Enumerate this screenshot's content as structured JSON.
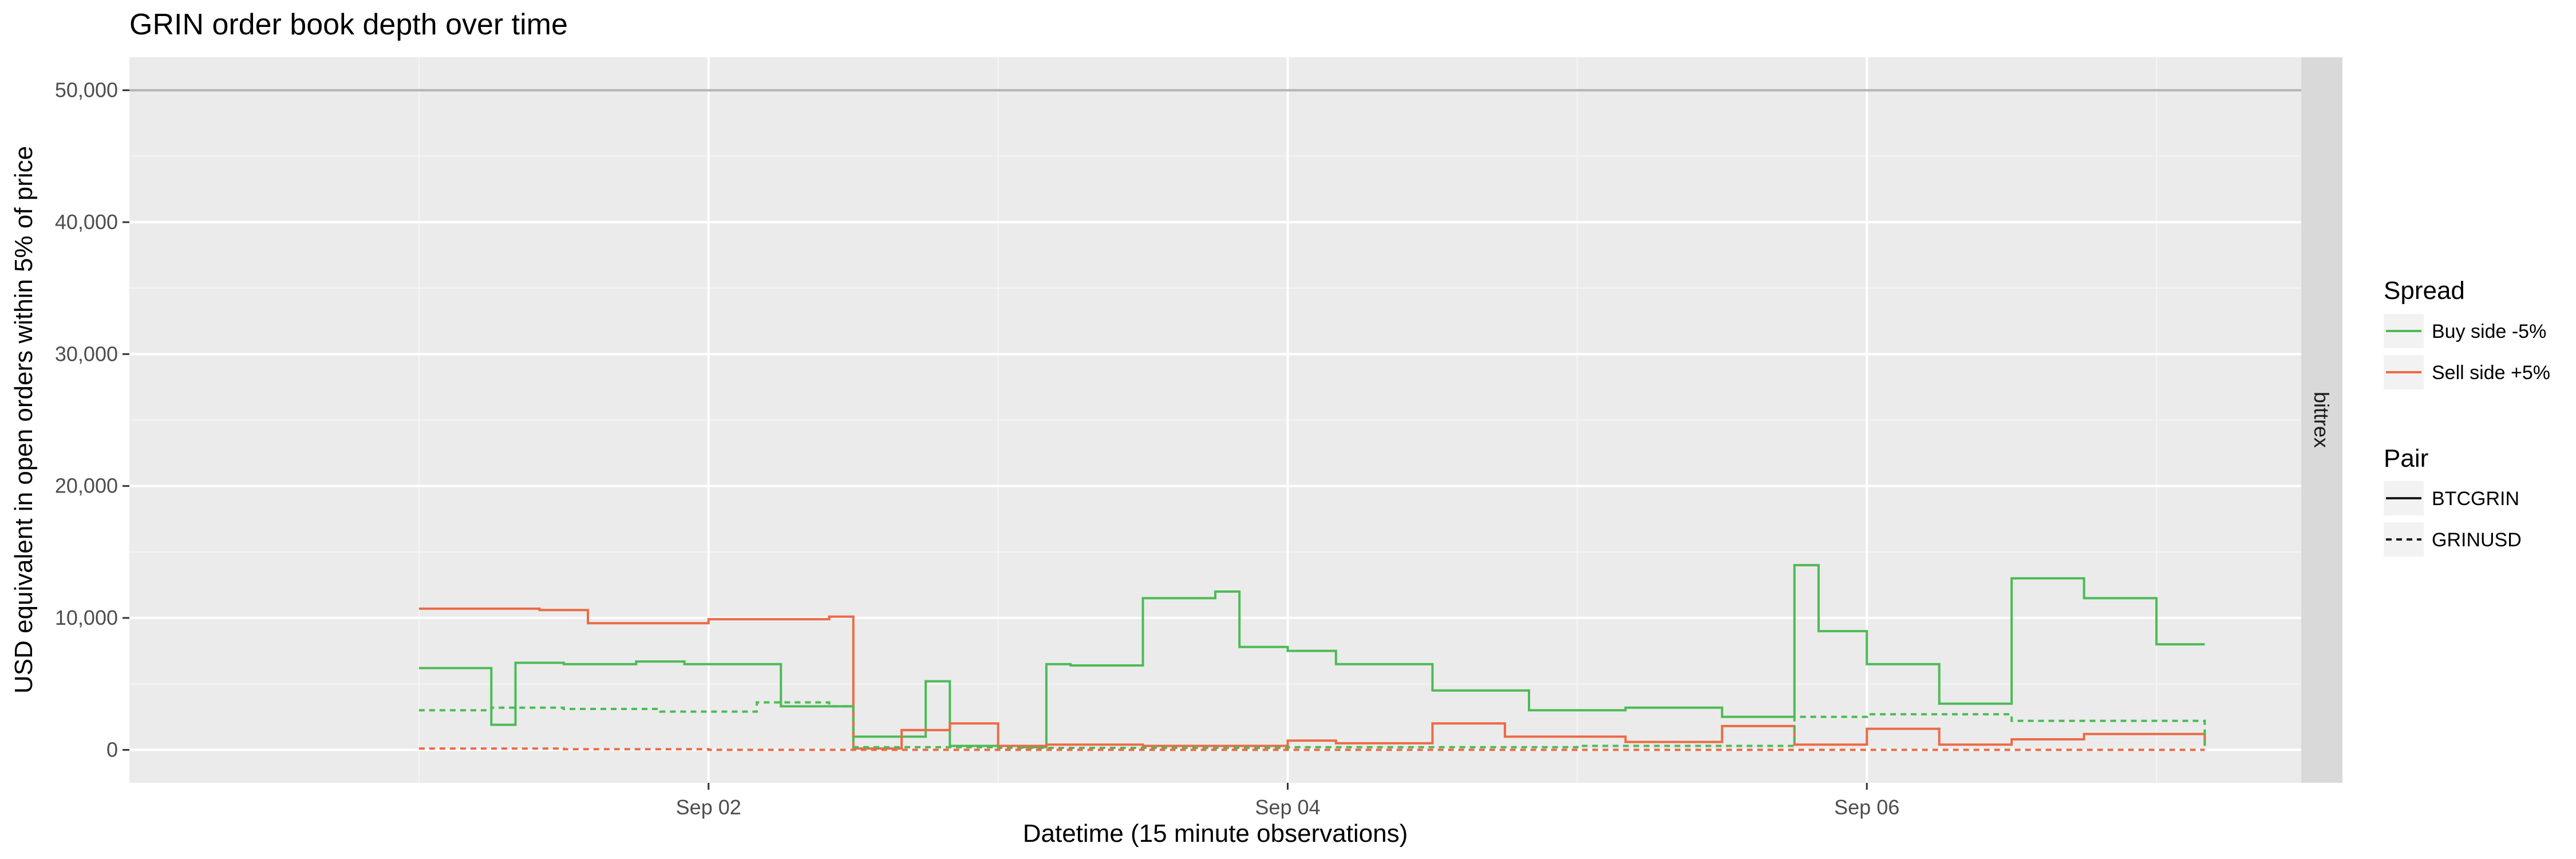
{
  "chart_data": {
    "type": "line",
    "title": "GRIN  order book depth over time",
    "xlabel": "Datetime (15 minute observations)",
    "ylabel": "USD equivalent in open orders within 5% of price",
    "facet": "bittrex",
    "x_domain": [
      "2018-08-31T00:00",
      "2018-09-07T12:00"
    ],
    "ylim": [
      -2500,
      52500
    ],
    "x_ticks": [
      {
        "label": "Sep 02",
        "t": "2018-09-02T00:00"
      },
      {
        "label": "Sep 04",
        "t": "2018-09-04T00:00"
      },
      {
        "label": "Sep 06",
        "t": "2018-09-06T00:00"
      }
    ],
    "y_ticks": [
      {
        "label": "0",
        "value": 0
      },
      {
        "label": "10,000",
        "value": 10000
      },
      {
        "label": "20,000",
        "value": 20000
      },
      {
        "label": "30,000",
        "value": 30000
      },
      {
        "label": "40,000",
        "value": 40000
      },
      {
        "label": "50,000",
        "value": 50000
      }
    ],
    "reference_line": 50000,
    "grid": true,
    "legend_position": "right",
    "legends": {
      "spread": {
        "title": "Spread",
        "entries": [
          {
            "label": "Buy side -5%",
            "color": "#4cbb55"
          },
          {
            "label": "Sell side +5%",
            "color": "#ec6a45"
          }
        ]
      },
      "pair": {
        "title": "Pair",
        "entries": [
          {
            "label": "BTCGRIN",
            "dash": "solid"
          },
          {
            "label": "GRINUSD",
            "dash": "dashed"
          }
        ]
      }
    },
    "series": [
      {
        "name": "Buy side -5% BTCGRIN",
        "color": "#4cbb55",
        "dash": "solid",
        "t": [
          "2018-09-01T00:00",
          "2018-09-01T06:00",
          "2018-09-01T08:00",
          "2018-09-01T12:00",
          "2018-09-01T18:00",
          "2018-09-01T22:00",
          "2018-09-02T06:00",
          "2018-09-02T12:00",
          "2018-09-02T18:00",
          "2018-09-02T20:00",
          "2018-09-02T22:00",
          "2018-09-03T02:00",
          "2018-09-03T04:00",
          "2018-09-03T06:00",
          "2018-09-03T12:00",
          "2018-09-03T18:00",
          "2018-09-03T20:00",
          "2018-09-04T00:00",
          "2018-09-04T04:00",
          "2018-09-04T12:00",
          "2018-09-04T20:00",
          "2018-09-05T04:00",
          "2018-09-05T12:00",
          "2018-09-05T18:00",
          "2018-09-05T20:00",
          "2018-09-06T00:00",
          "2018-09-06T06:00",
          "2018-09-06T12:00",
          "2018-09-06T18:00",
          "2018-09-07T00:00",
          "2018-09-07T04:00"
        ],
        "values": [
          6200,
          1900,
          6600,
          6500,
          6700,
          6500,
          3300,
          1000,
          5200,
          300,
          300,
          200,
          6500,
          6400,
          11500,
          12000,
          7800,
          7500,
          6500,
          4500,
          3000,
          3200,
          2500,
          14000,
          9000,
          6500,
          3500,
          13000,
          11500,
          8000,
          8000
        ]
      },
      {
        "name": "Sell side +5% BTCGRIN",
        "color": "#ec6a45",
        "dash": "solid",
        "t": [
          "2018-09-01T00:00",
          "2018-09-01T10:00",
          "2018-09-01T14:00",
          "2018-09-02T00:00",
          "2018-09-02T10:00",
          "2018-09-02T12:00",
          "2018-09-02T16:00",
          "2018-09-02T20:00",
          "2018-09-03T00:00",
          "2018-09-03T04:00",
          "2018-09-03T12:00",
          "2018-09-04T00:00",
          "2018-09-04T04:00",
          "2018-09-04T12:00",
          "2018-09-04T18:00",
          "2018-09-05T04:00",
          "2018-09-05T12:00",
          "2018-09-05T18:00",
          "2018-09-06T00:00",
          "2018-09-06T06:00",
          "2018-09-06T12:00",
          "2018-09-06T18:00",
          "2018-09-07T04:00"
        ],
        "values": [
          10700,
          10600,
          9600,
          9900,
          10100,
          100,
          1500,
          2000,
          300,
          400,
          300,
          700,
          500,
          2000,
          1000,
          600,
          1800,
          400,
          1600,
          400,
          800,
          1200,
          300
        ]
      },
      {
        "name": "Buy side -5% GRINUSD",
        "color": "#4cbb55",
        "dash": "dashed",
        "t": [
          "2018-09-01T00:00",
          "2018-09-01T06:00",
          "2018-09-01T12:00",
          "2018-09-01T20:00",
          "2018-09-02T04:00",
          "2018-09-02T10:00",
          "2018-09-02T12:00",
          "2018-09-03T00:00",
          "2018-09-04T00:00",
          "2018-09-05T00:00",
          "2018-09-05T18:00",
          "2018-09-06T00:00",
          "2018-09-06T12:00",
          "2018-09-07T04:00"
        ],
        "values": [
          3000,
          3200,
          3100,
          2900,
          3600,
          3300,
          200,
          150,
          200,
          300,
          2500,
          2700,
          2200,
          300
        ]
      },
      {
        "name": "Sell side +5% GRINUSD",
        "color": "#ec6a45",
        "dash": "dashed",
        "t": [
          "2018-09-01T00:00",
          "2018-09-01T12:00",
          "2018-09-02T00:00",
          "2018-09-03T00:00",
          "2018-09-04T00:00",
          "2018-09-05T00:00",
          "2018-09-06T00:00",
          "2018-09-07T04:00"
        ],
        "values": [
          100,
          50,
          0,
          0,
          0,
          0,
          0,
          0
        ]
      }
    ]
  }
}
